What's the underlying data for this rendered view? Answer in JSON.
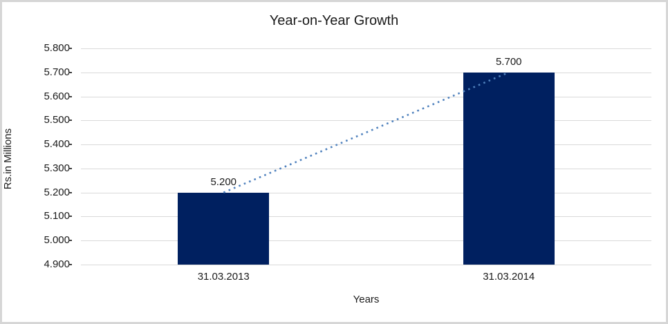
{
  "window": {
    "background_color": "#ffffff",
    "border_color": "#d6d6d6"
  },
  "chart_data": {
    "type": "bar",
    "title": "Year-on-Year Growth",
    "xlabel": "Years",
    "ylabel": "Rs.in Millions",
    "categories": [
      "31.03.2013",
      "31.03.2014"
    ],
    "values": [
      5200,
      5700
    ],
    "value_labels": [
      "5.200",
      "5.700"
    ],
    "ylim": [
      4900,
      5800
    ],
    "y_tick_step": 100,
    "y_tick_labels": [
      "4.900",
      "5.000",
      "5.100",
      "5.200",
      "5.300",
      "5.400",
      "5.500",
      "5.600",
      "5.700",
      "5.800"
    ],
    "grid": true,
    "legend": "none",
    "bar_color": "#002060",
    "gridline_color": "#d9d9d9",
    "trendline": {
      "style": "dotted",
      "color": "#4f81bd",
      "from_value": 5200,
      "to_value": 5700
    }
  }
}
